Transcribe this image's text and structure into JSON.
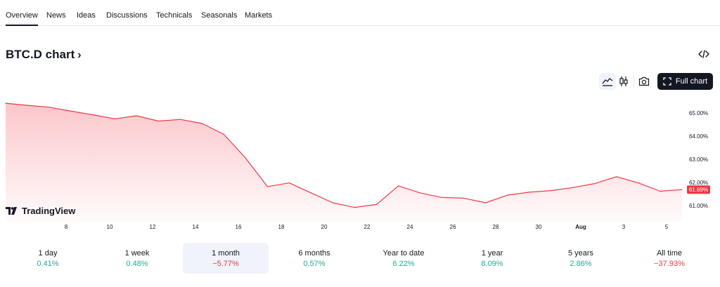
{
  "tabs": [
    {
      "label": "Overview",
      "active": true
    },
    {
      "label": "News",
      "active": false
    },
    {
      "label": "Ideas",
      "active": false
    },
    {
      "label": "Discussions",
      "active": false
    },
    {
      "label": "Technicals",
      "active": false
    },
    {
      "label": "Seasonals",
      "active": false
    },
    {
      "label": "Markets",
      "active": false
    }
  ],
  "title": "BTC.D chart",
  "toolbar": {
    "full_chart_label": "Full chart",
    "icons": [
      "area-chart-icon",
      "candlestick-icon",
      "camera-icon",
      "expand-icon",
      "embed-code-icon"
    ]
  },
  "brand": "TradingView",
  "current_price_label": "61.69%",
  "colors": {
    "line": "#f23645",
    "positive": "#22ab94",
    "negative": "#f23645",
    "selected_bg": "#f0f3fa",
    "button_dark": "#131722"
  },
  "chart_data": {
    "type": "area",
    "x_tick_labels": [
      "8",
      "10",
      "12",
      "14",
      "16",
      "18",
      "20",
      "22",
      "24",
      "26",
      "28",
      "30",
      "Aug",
      "3",
      "5"
    ],
    "y_tick_labels": [
      "65.00%",
      "64.00%",
      "63.00%",
      "62.00%",
      "61.00%"
    ],
    "ylim": [
      60.6,
      65.6
    ],
    "grid": false,
    "x": [
      "Jul 6",
      "Jul 7",
      "Jul 8",
      "Jul 9",
      "Jul 10",
      "Jul 11",
      "Jul 12",
      "Jul 13",
      "Jul 14",
      "Jul 15",
      "Jul 16",
      "Jul 17",
      "Jul 18",
      "Jul 19",
      "Jul 20",
      "Jul 21",
      "Jul 22",
      "Jul 23",
      "Jul 24",
      "Jul 25",
      "Jul 26",
      "Jul 27",
      "Jul 28",
      "Jul 29",
      "Jul 30",
      "Jul 31",
      "Aug 1",
      "Aug 2",
      "Aug 3",
      "Aug 4",
      "Aug 5",
      "Aug 6"
    ],
    "values": [
      65.42,
      65.33,
      65.25,
      65.08,
      64.92,
      64.75,
      64.88,
      64.65,
      64.72,
      64.55,
      64.08,
      63.05,
      61.82,
      61.98,
      61.55,
      61.12,
      60.92,
      61.05,
      61.85,
      61.55,
      61.35,
      61.32,
      61.12,
      61.45,
      61.58,
      61.65,
      61.78,
      61.95,
      62.25,
      61.98,
      61.62,
      61.69
    ],
    "current_value": 61.69
  },
  "periods": [
    {
      "label": "1 day",
      "value": "0.41%",
      "dir": "pos",
      "selected": false
    },
    {
      "label": "1 week",
      "value": "0.48%",
      "dir": "pos",
      "selected": false
    },
    {
      "label": "1 month",
      "value": "−5.77%",
      "dir": "neg",
      "selected": true
    },
    {
      "label": "6 months",
      "value": "0.57%",
      "dir": "pos",
      "selected": false
    },
    {
      "label": "Year to date",
      "value": "6.22%",
      "dir": "pos",
      "selected": false
    },
    {
      "label": "1 year",
      "value": "8.09%",
      "dir": "pos",
      "selected": false
    },
    {
      "label": "5 years",
      "value": "2.86%",
      "dir": "pos",
      "selected": false
    },
    {
      "label": "All time",
      "value": "−37.93%",
      "dir": "neg",
      "selected": false
    }
  ]
}
